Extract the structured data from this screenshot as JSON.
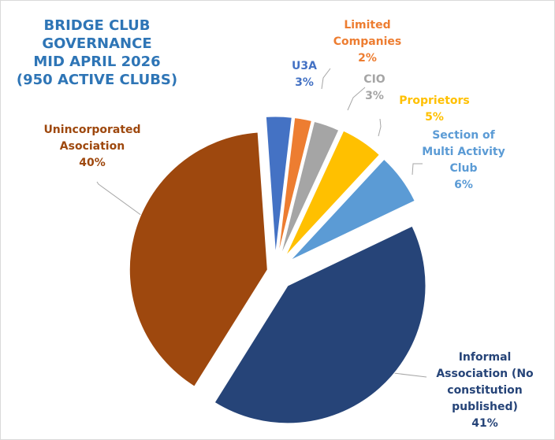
{
  "chart_data": {
    "type": "pie",
    "title": [
      "BRIDGE  CLUB",
      "GOVERNANCE",
      "MID APRIL 2026",
      "(950 ACTIVE CLUBS)"
    ],
    "title_color": "#2E75B6",
    "slices": [
      {
        "name": "U3A",
        "label_lines": [
          "U3A"
        ],
        "value": 3,
        "value_label": "3%",
        "color": "#4472C4",
        "label_color": "#4472C4"
      },
      {
        "name": "Limited Companies",
        "label_lines": [
          "Limited",
          "Companies"
        ],
        "value": 2,
        "value_label": "2%",
        "color": "#ED7D31",
        "label_color": "#ED7D31"
      },
      {
        "name": "CIO",
        "label_lines": [
          "CIO"
        ],
        "value": 3,
        "value_label": "3%",
        "color": "#A5A5A5",
        "label_color": "#A5A5A5"
      },
      {
        "name": "Proprietors",
        "label_lines": [
          "Proprietors"
        ],
        "value": 5,
        "value_label": "5%",
        "color": "#FFC000",
        "label_color": "#FFC000"
      },
      {
        "name": "Section of Multi Activity Club",
        "label_lines": [
          "Section of",
          "Multi Activity",
          "Club"
        ],
        "value": 6,
        "value_label": "6%",
        "color": "#5B9BD5",
        "label_color": "#5B9BD5"
      },
      {
        "name": "Informal Association (No constitution published)",
        "label_lines": [
          "Informal",
          "Association (No",
          "constitution",
          "published)"
        ],
        "value": 41,
        "value_label": "41%",
        "color": "#264478",
        "label_color": "#264478"
      },
      {
        "name": "Unincorporated Asociation",
        "label_lines": [
          "Unincorporated",
          "Asociation"
        ],
        "value": 40,
        "value_label": "40%",
        "color": "#9E480E",
        "label_color": "#9E480E"
      }
    ]
  }
}
